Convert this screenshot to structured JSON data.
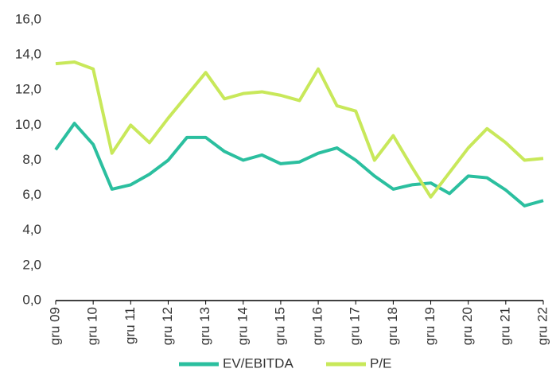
{
  "chart_data": {
    "type": "line",
    "categories": [
      "gru 09",
      null,
      "gru 10",
      null,
      "gru 11",
      null,
      "gru 12",
      null,
      "gru 13",
      null,
      "gru 14",
      null,
      "gru 15",
      null,
      "gru 16",
      null,
      "gru 17",
      null,
      "gru 18",
      null,
      "gru 19",
      null,
      "gru 20",
      null,
      "gru 21",
      null,
      "gru 22"
    ],
    "series": [
      {
        "name": "EV/EBITDA",
        "color": "#2bbf9f",
        "values": [
          8.6,
          10.1,
          8.9,
          6.35,
          6.6,
          7.2,
          8.0,
          9.3,
          9.3,
          8.5,
          8.0,
          8.3,
          7.8,
          7.9,
          8.4,
          8.7,
          8.0,
          7.1,
          6.35,
          6.6,
          6.7,
          6.1,
          7.1,
          7.0,
          6.3,
          5.4,
          5.7
        ]
      },
      {
        "name": "P/E",
        "color": "#c8e85a",
        "values": [
          13.5,
          13.6,
          13.2,
          8.4,
          10.0,
          9.0,
          10.4,
          11.7,
          13.0,
          11.5,
          11.8,
          11.9,
          11.7,
          11.4,
          13.2,
          11.1,
          10.8,
          8.0,
          9.4,
          7.6,
          5.9,
          7.3,
          8.7,
          9.8,
          9.0,
          8.0,
          8.1
        ]
      }
    ],
    "ylim": [
      0,
      16
    ],
    "yticks": [
      {
        "value": 0,
        "label": "0,0"
      },
      {
        "value": 2,
        "label": "2,0"
      },
      {
        "value": 4,
        "label": "4,0"
      },
      {
        "value": 6,
        "label": "6,0"
      },
      {
        "value": 8,
        "label": "8,0"
      },
      {
        "value": 10,
        "label": "10,0"
      },
      {
        "value": 12,
        "label": "12,0"
      },
      {
        "value": 14,
        "label": "14,0"
      },
      {
        "value": 16,
        "label": "16,0"
      }
    ],
    "legend": "bottom"
  }
}
